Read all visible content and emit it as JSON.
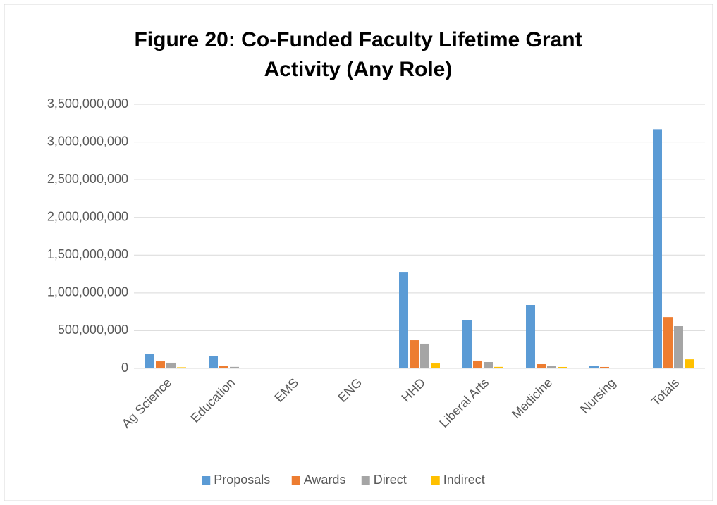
{
  "chart_data": {
    "type": "bar",
    "title": [
      "Figure 20: Co-Funded Faculty Lifetime Grant",
      "Activity (Any Role)"
    ],
    "categories": [
      "Ag Science",
      "Education",
      "EMS",
      "ENG",
      "HHD",
      "Liberal Arts",
      "Medicine",
      "Nursing",
      "Totals"
    ],
    "series": [
      {
        "name": "Proposals",
        "color": "#5b9bd5",
        "values": [
          187000000,
          168000000,
          1000000,
          5000000,
          1278000000,
          635000000,
          840000000,
          28000000,
          3170000000
        ]
      },
      {
        "name": "Awards",
        "color": "#ed7d31",
        "values": [
          93000000,
          28000000,
          1000000,
          1000000,
          373000000,
          103000000,
          56000000,
          19000000,
          680000000
        ]
      },
      {
        "name": "Direct",
        "color": "#a5a5a5",
        "values": [
          75000000,
          20000000,
          1000000,
          1000000,
          327000000,
          84000000,
          37000000,
          9000000,
          560000000
        ]
      },
      {
        "name": "Indirect",
        "color": "#ffc000",
        "values": [
          15000000,
          2000000,
          0,
          0,
          65000000,
          20000000,
          19000000,
          2000000,
          120000000
        ]
      }
    ],
    "ylim": [
      0,
      3500000000
    ],
    "yticks": [
      0,
      {
        "value": 500000000,
        "label": "500,000,000"
      },
      {
        "value": 1000000000,
        "label": "1,000,000,000"
      },
      {
        "value": 1500000000,
        "label": "1,500,000,000"
      },
      {
        "value": 2000000000,
        "label": "2,000,000,000"
      },
      {
        "value": 2500000000,
        "label": "2,500,000,000"
      },
      {
        "value": 3000000000,
        "label": "3,000,000,000"
      },
      {
        "value": 3500000000,
        "label": "3,500,000,000"
      }
    ],
    "grid": true,
    "legend": "bottom"
  }
}
